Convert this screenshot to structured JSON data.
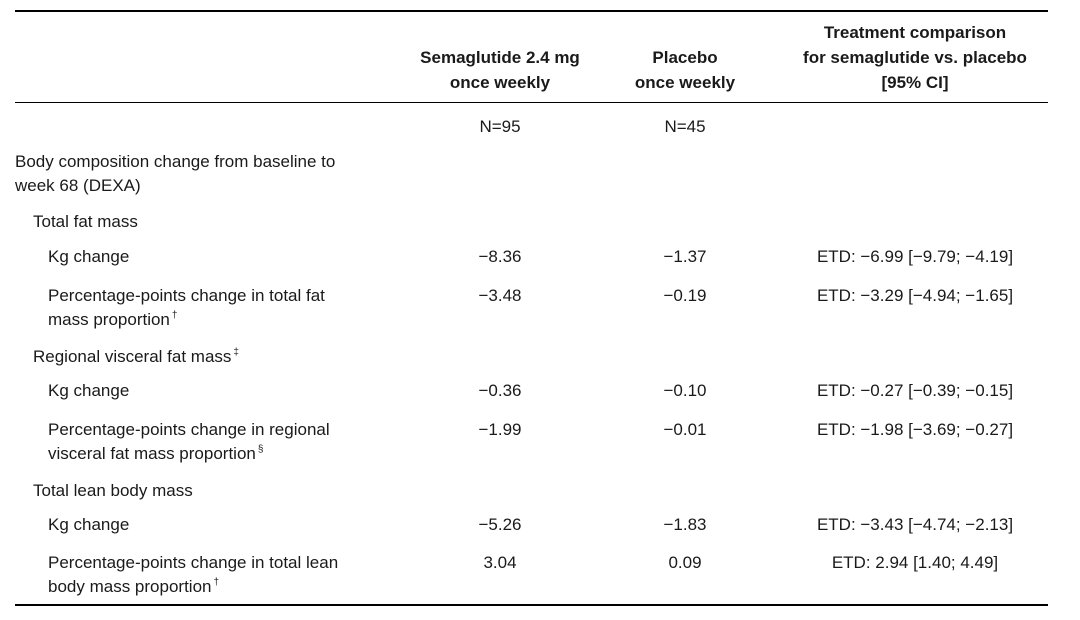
{
  "table": {
    "headers": {
      "col1": [
        "Semaglutide 2.4 mg",
        "once weekly"
      ],
      "col2": [
        "Placebo",
        "once weekly"
      ],
      "col3": [
        "Treatment comparison",
        "for semaglutide vs. placebo",
        "[95% CI]"
      ]
    },
    "n": {
      "col1": "N=95",
      "col2": "N=45"
    },
    "section_title": [
      "Body composition change from baseline to",
      "week 68 (DEXA)"
    ],
    "groups": [
      {
        "title": "Total fat mass",
        "title_mark": "",
        "rows": [
          {
            "label": [
              "Kg change"
            ],
            "mark": "",
            "sema": "−8.36",
            "placebo": "−1.37",
            "etd": "ETD: −6.99 [−9.79; −4.19]"
          },
          {
            "label": [
              "Percentage-points change in total fat",
              "mass proportion"
            ],
            "mark": "†",
            "sema": "−3.48",
            "placebo": "−0.19",
            "etd": "ETD: −3.29 [−4.94; −1.65]"
          }
        ]
      },
      {
        "title": "Regional visceral fat mass",
        "title_mark": "‡",
        "rows": [
          {
            "label": [
              "Kg change"
            ],
            "mark": "",
            "sema": "−0.36",
            "placebo": "−0.10",
            "etd": "ETD: −0.27 [−0.39; −0.15]"
          },
          {
            "label": [
              "Percentage-points change in regional",
              "visceral fat mass proportion"
            ],
            "mark": "§",
            "sema": "−1.99",
            "placebo": "−0.01",
            "etd": "ETD: −1.98 [−3.69; −0.27]"
          }
        ]
      },
      {
        "title": "Total lean body mass",
        "title_mark": "",
        "rows": [
          {
            "label": [
              "Kg change"
            ],
            "mark": "",
            "sema": "−5.26",
            "placebo": "−1.83",
            "etd": "ETD: −3.43 [−4.74; −2.13]"
          },
          {
            "label": [
              "Percentage-points change in total lean",
              "body mass proportion"
            ],
            "mark": "†",
            "sema": "3.04",
            "placebo": "0.09",
            "etd": "ETD: 2.94 [1.40; 4.49]"
          }
        ]
      }
    ]
  }
}
